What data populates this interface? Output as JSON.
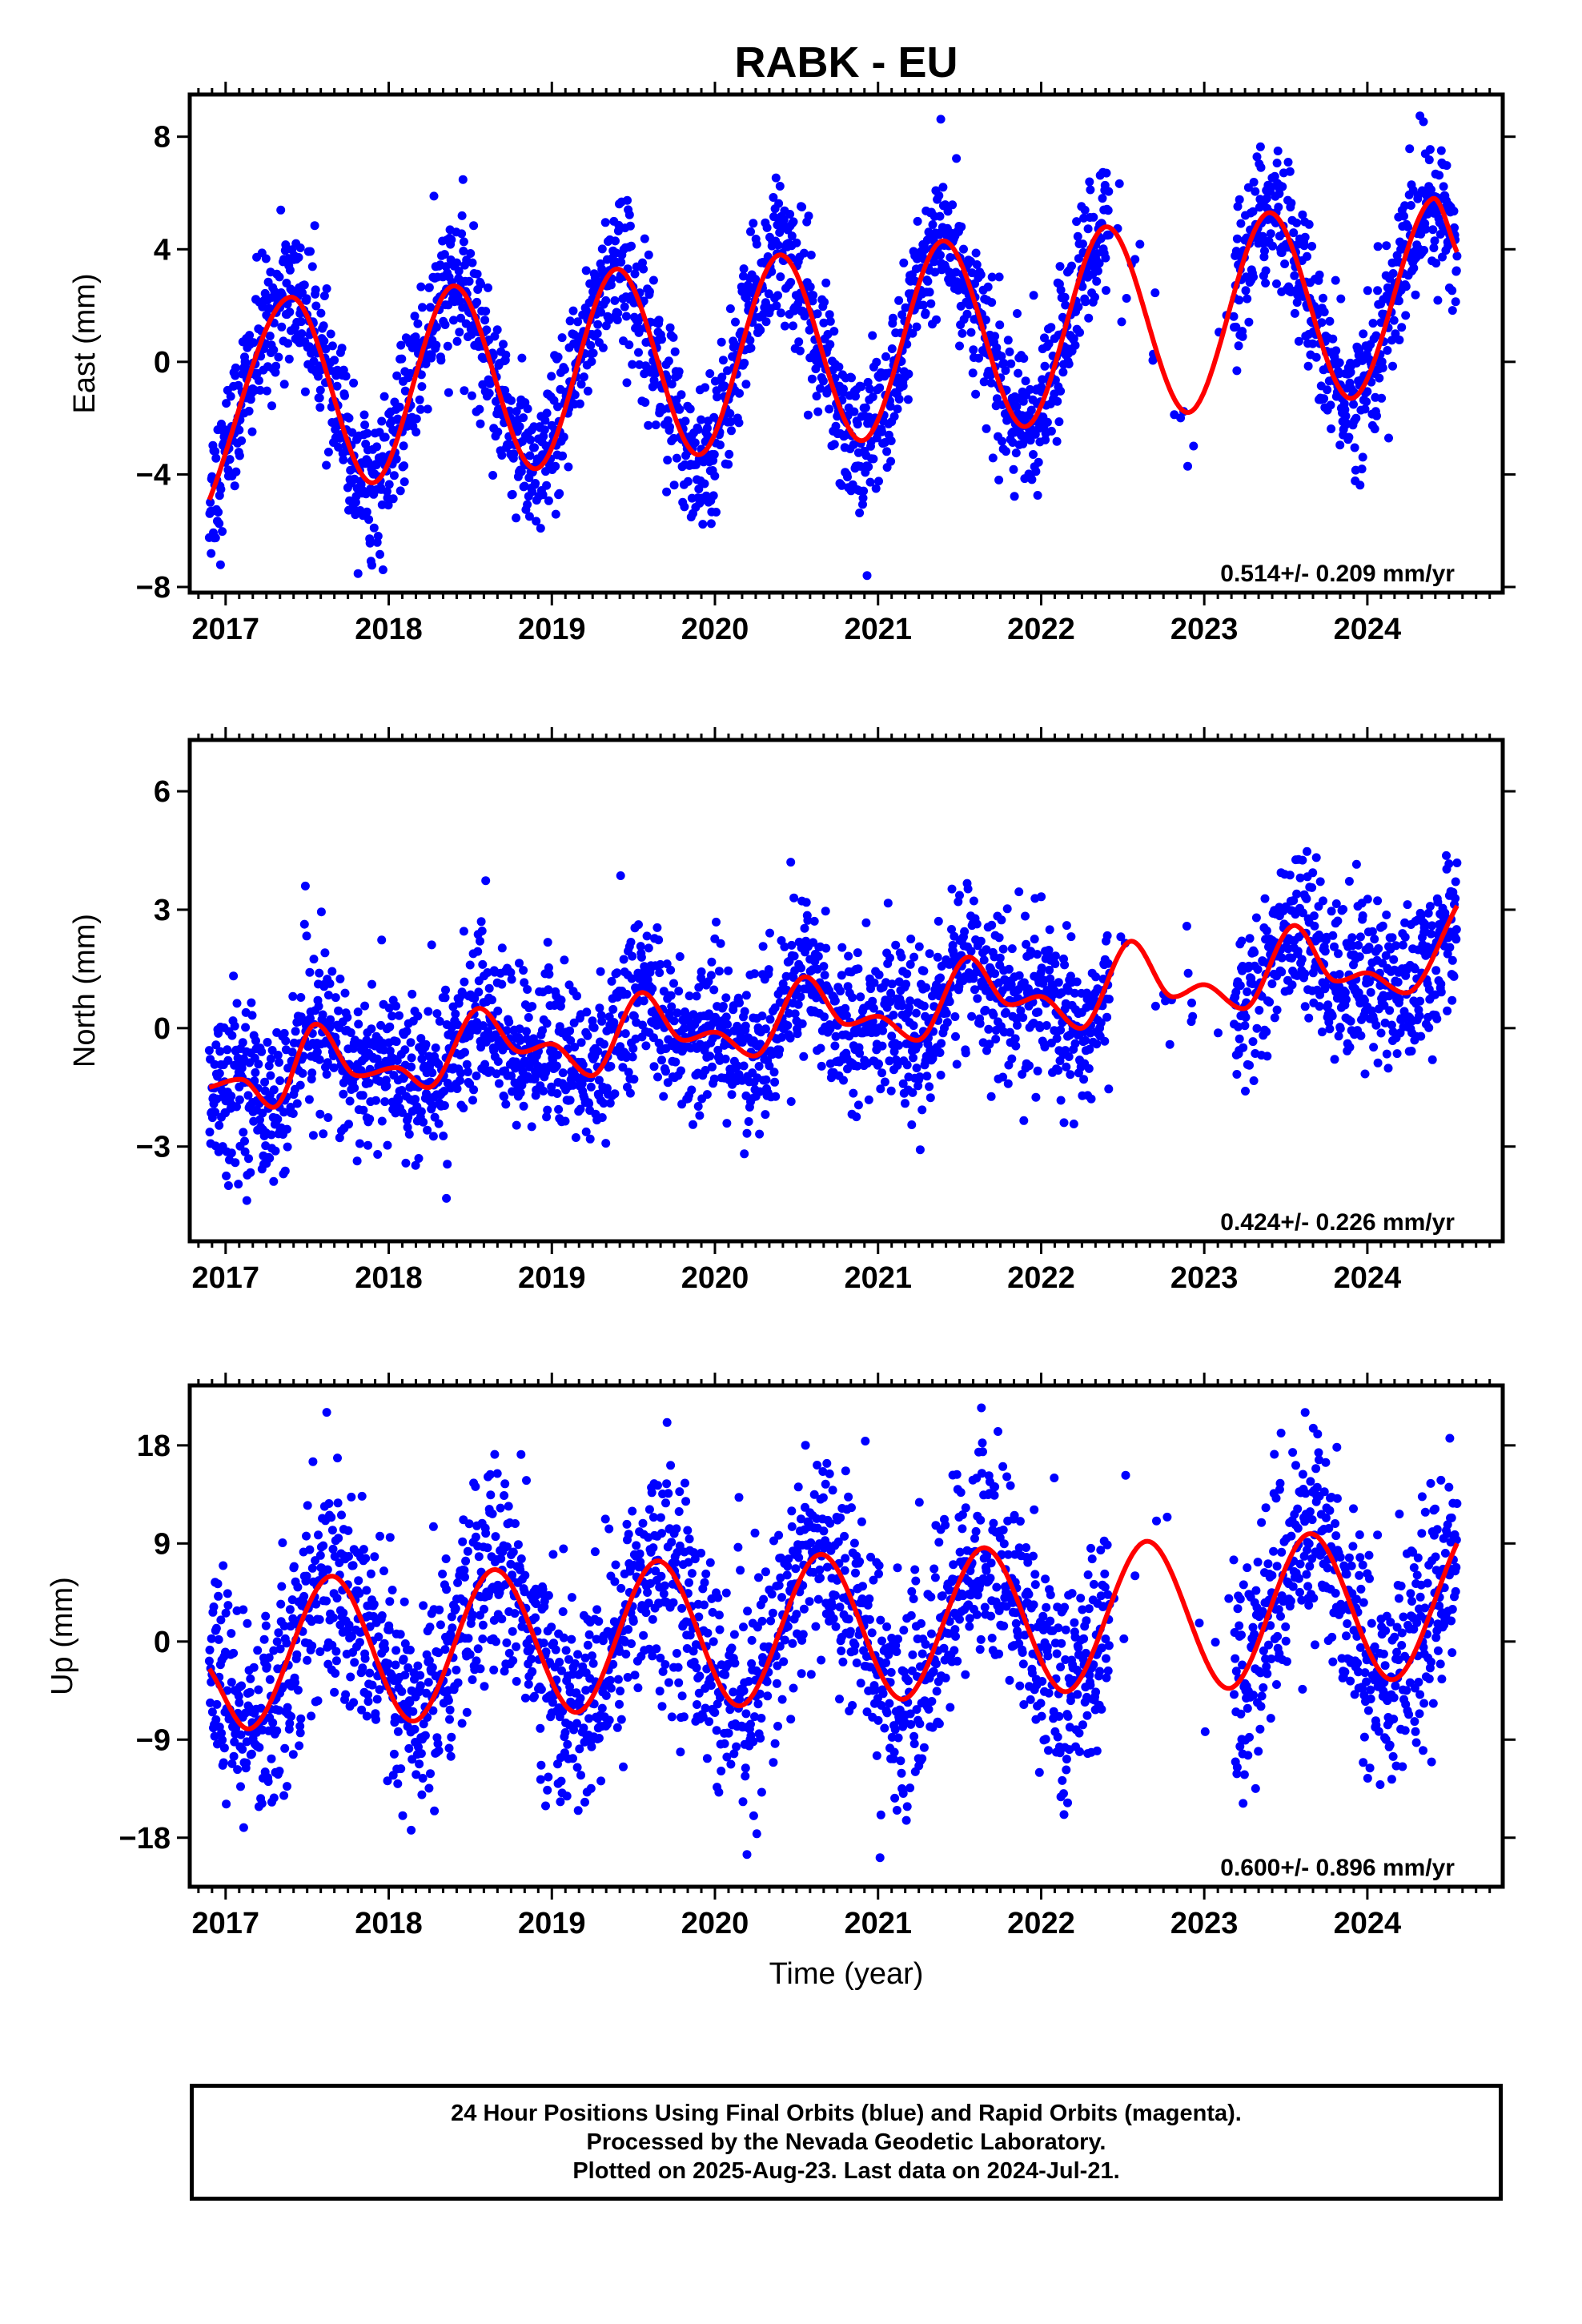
{
  "figure_title": "RABK - EU",
  "x_axis_label": "Time (year)",
  "colors": {
    "points": "#0000ff",
    "fit": "#ff0000",
    "frame": "#000000"
  },
  "footer": {
    "line1": "24 Hour Positions Using Final Orbits (blue) and Rapid Orbits (magenta).",
    "line2": "Processed by the Nevada Geodetic Laboratory.",
    "line3": "Plotted on 2025-Aug-23. Last data on 2024-Jul-21."
  },
  "chart_data": [
    {
      "type": "scatter",
      "panel": "east",
      "title": "",
      "xlabel": "",
      "ylabel": "East (mm)",
      "xlim": [
        2016.78,
        2024.83
      ],
      "ylim": [
        -8.2,
        9.5
      ],
      "xticks": [
        "2017",
        "2018",
        "2019",
        "2020",
        "2021",
        "2022",
        "2023",
        "2024"
      ],
      "yticks": [
        -8,
        -4,
        0,
        4,
        8
      ],
      "rate_text": "0.514+/- 0.209 mm/yr",
      "gap": [
        2022.42,
        2023.18
      ],
      "data_end": 2024.55,
      "fit_knots": {
        "x": [
          2016.9,
          2017.4,
          2017.9,
          2018.4,
          2018.9,
          2019.4,
          2019.9,
          2020.4,
          2020.9,
          2021.4,
          2021.9,
          2022.4,
          2022.9,
          2023.4,
          2023.9,
          2024.4,
          2024.55
        ],
        "y": [
          -4.9,
          2.3,
          -4.3,
          2.7,
          -3.8,
          3.3,
          -3.3,
          3.8,
          -2.8,
          4.3,
          -2.3,
          4.8,
          -1.8,
          5.3,
          -1.3,
          5.8,
          3.9
        ]
      },
      "scatter_sd": 1.3
    },
    {
      "type": "scatter",
      "panel": "north",
      "title": "",
      "xlabel": "",
      "ylabel": "North (mm)",
      "xlim": [
        2016.78,
        2024.83
      ],
      "ylim": [
        -5.4,
        7.3
      ],
      "xticks": [
        "2017",
        "2018",
        "2019",
        "2020",
        "2021",
        "2022",
        "2023",
        "2024"
      ],
      "yticks": [
        -3,
        0,
        3,
        6
      ],
      "rate_text": "0.424+/- 0.226 mm/yr",
      "gap": [
        2022.42,
        2023.18
      ],
      "data_end": 2024.55,
      "fit_knots": {
        "x": [
          2016.9,
          2017.1,
          2017.3,
          2017.55,
          2017.8,
          2018.05,
          2018.25,
          2018.55,
          2018.8,
          2019.0,
          2019.25,
          2019.55,
          2019.8,
          2020.0,
          2020.25,
          2020.55,
          2020.8,
          2021.0,
          2021.25,
          2021.55,
          2021.8,
          2022.0,
          2022.25,
          2022.55,
          2022.8,
          2023.0,
          2023.25,
          2023.55,
          2023.8,
          2024.0,
          2024.25,
          2024.55
        ],
        "y": [
          -1.5,
          -1.3,
          -2.0,
          0.1,
          -1.2,
          -1.0,
          -1.5,
          0.5,
          -0.6,
          -0.4,
          -1.2,
          0.9,
          -0.3,
          -0.1,
          -0.7,
          1.3,
          0.1,
          0.3,
          -0.3,
          1.8,
          0.6,
          0.8,
          0.0,
          2.2,
          0.8,
          1.1,
          0.5,
          2.6,
          1.2,
          1.4,
          0.9,
          3.1
        ]
      },
      "scatter_sd": 1.0
    },
    {
      "type": "scatter",
      "panel": "up",
      "title": "",
      "xlabel": "Time (year)",
      "ylabel": "Up (mm)",
      "xlim": [
        2016.78,
        2024.83
      ],
      "ylim": [
        -22.5,
        23.5
      ],
      "xticks": [
        "2017",
        "2018",
        "2019",
        "2020",
        "2021",
        "2022",
        "2023",
        "2024"
      ],
      "yticks": [
        -18,
        -9,
        0,
        9,
        18
      ],
      "rate_text": "0.600+/- 0.896 mm/yr",
      "gap": [
        2022.42,
        2023.18
      ],
      "data_end": 2024.55,
      "fit_knots": {
        "x": [
          2016.9,
          2017.15,
          2017.65,
          2018.15,
          2018.65,
          2019.15,
          2019.65,
          2020.15,
          2020.65,
          2021.15,
          2021.65,
          2022.15,
          2022.65,
          2023.15,
          2023.65,
          2024.15,
          2024.55
        ],
        "y": [
          -2.5,
          -8.0,
          6.0,
          -7.3,
          6.6,
          -6.5,
          7.4,
          -5.9,
          8.0,
          -5.3,
          8.6,
          -4.6,
          9.2,
          -4.3,
          9.9,
          -3.5,
          9.0
        ]
      },
      "scatter_sd": 5.0
    }
  ]
}
